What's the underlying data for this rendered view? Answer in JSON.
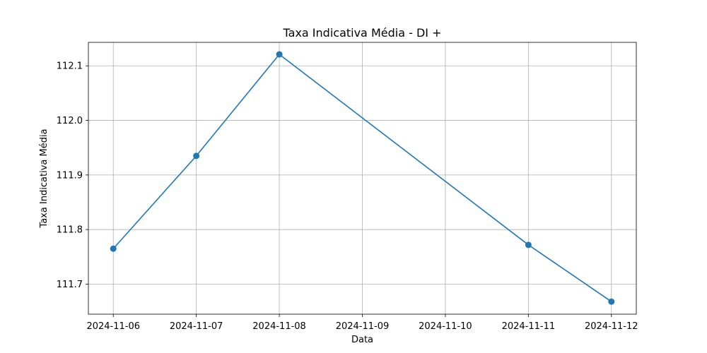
{
  "chart_data": {
    "type": "line",
    "title": "Taxa Indicativa Média - DI +",
    "xlabel": "Data",
    "ylabel": "Taxa Indicativa Média",
    "x_ticks": [
      "2024-11-06",
      "2024-11-07",
      "2024-11-08",
      "2024-11-09",
      "2024-11-10",
      "2024-11-11",
      "2024-11-12"
    ],
    "y_ticks": [
      "111.7",
      "111.8",
      "111.9",
      "112.0",
      "112.1"
    ],
    "xlim": [
      "2024-11-05T16:48",
      "2024-11-12T07:12"
    ],
    "ylim": [
      111.645,
      112.143
    ],
    "grid": true,
    "legend": "none",
    "series": [
      {
        "color": "#1f77b4",
        "marker": "circle",
        "points": [
          {
            "x": "2024-11-06",
            "y": 111.765
          },
          {
            "x": "2024-11-07",
            "y": 111.935
          },
          {
            "x": "2024-11-08",
            "y": 112.121
          },
          {
            "x": "2024-11-11",
            "y": 111.772
          },
          {
            "x": "2024-11-12",
            "y": 111.668
          }
        ]
      }
    ]
  }
}
